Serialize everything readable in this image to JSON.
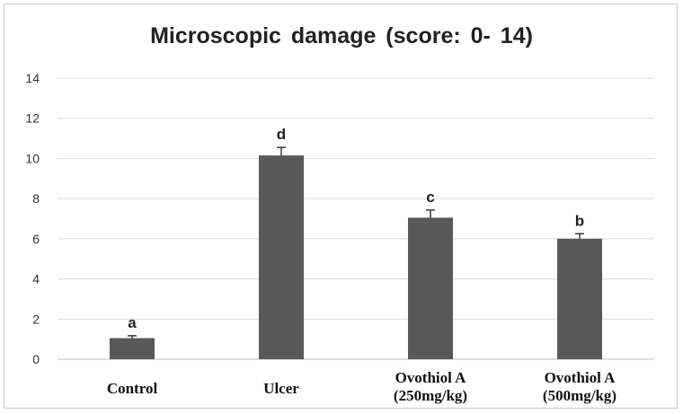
{
  "chart_data": {
    "type": "bar",
    "title": "Microscopic  damage (score: 0- 14)",
    "xlabel": "",
    "ylabel": "",
    "ylim": [
      0,
      14
    ],
    "yticks": [
      "0",
      "2",
      "4",
      "6",
      "8",
      "10",
      "12",
      "14"
    ],
    "grid": true,
    "categories": [
      [
        "Control"
      ],
      [
        "Ulcer"
      ],
      [
        "Ovothiol A",
        "(250mg/kg)"
      ],
      [
        "Ovothiol A",
        "(500mg/kg)"
      ]
    ],
    "values": [
      1.05,
      10.15,
      7.05,
      6.0
    ],
    "errors": [
      0.12,
      0.4,
      0.38,
      0.25
    ],
    "significance": [
      "a",
      "d",
      "c",
      "b"
    ],
    "bar_color": "#595959"
  }
}
